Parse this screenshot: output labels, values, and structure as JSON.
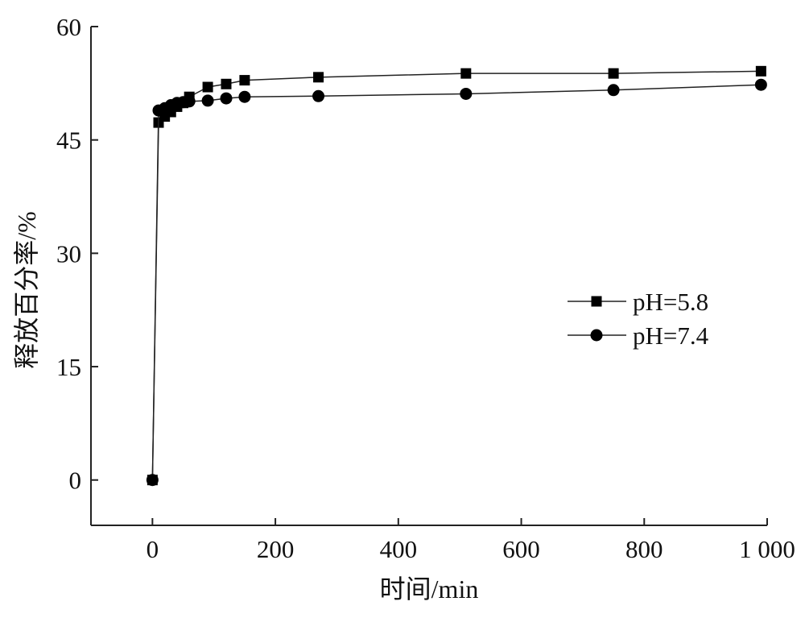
{
  "chart_data": {
    "type": "line",
    "title": "",
    "xlabel": "时间/min",
    "ylabel": "释放百分率/%",
    "xlim": [
      -100,
      1000
    ],
    "ylim": [
      -6,
      60
    ],
    "xticks": [
      0,
      200,
      400,
      600,
      800,
      1000
    ],
    "xtick_labels": [
      "0",
      "200",
      "400",
      "600",
      "800",
      "1 000"
    ],
    "yticks": [
      0,
      15,
      30,
      45,
      60
    ],
    "ytick_labels": [
      "0",
      "15",
      "30",
      "45",
      "60"
    ],
    "grid": false,
    "legend_position": "center-right",
    "series": [
      {
        "name": "pH=5.8",
        "marker": "square",
        "x": [
          0,
          10,
          20,
          30,
          40,
          50,
          60,
          90,
          120,
          150,
          270,
          510,
          750,
          990
        ],
        "y": [
          0,
          47.3,
          48.1,
          48.7,
          49.4,
          49.9,
          50.7,
          52.0,
          52.4,
          52.9,
          53.3,
          53.8,
          53.8,
          54.1
        ]
      },
      {
        "name": "pH=7.4",
        "marker": "circle",
        "x": [
          0,
          10,
          20,
          30,
          40,
          50,
          60,
          90,
          120,
          150,
          270,
          510,
          750,
          990
        ],
        "y": [
          0,
          48.9,
          49.2,
          49.6,
          49.9,
          50.0,
          50.1,
          50.2,
          50.5,
          50.7,
          50.8,
          51.1,
          51.6,
          52.3
        ]
      }
    ],
    "colors": {
      "line": "#222222",
      "marker": "#000000"
    }
  }
}
